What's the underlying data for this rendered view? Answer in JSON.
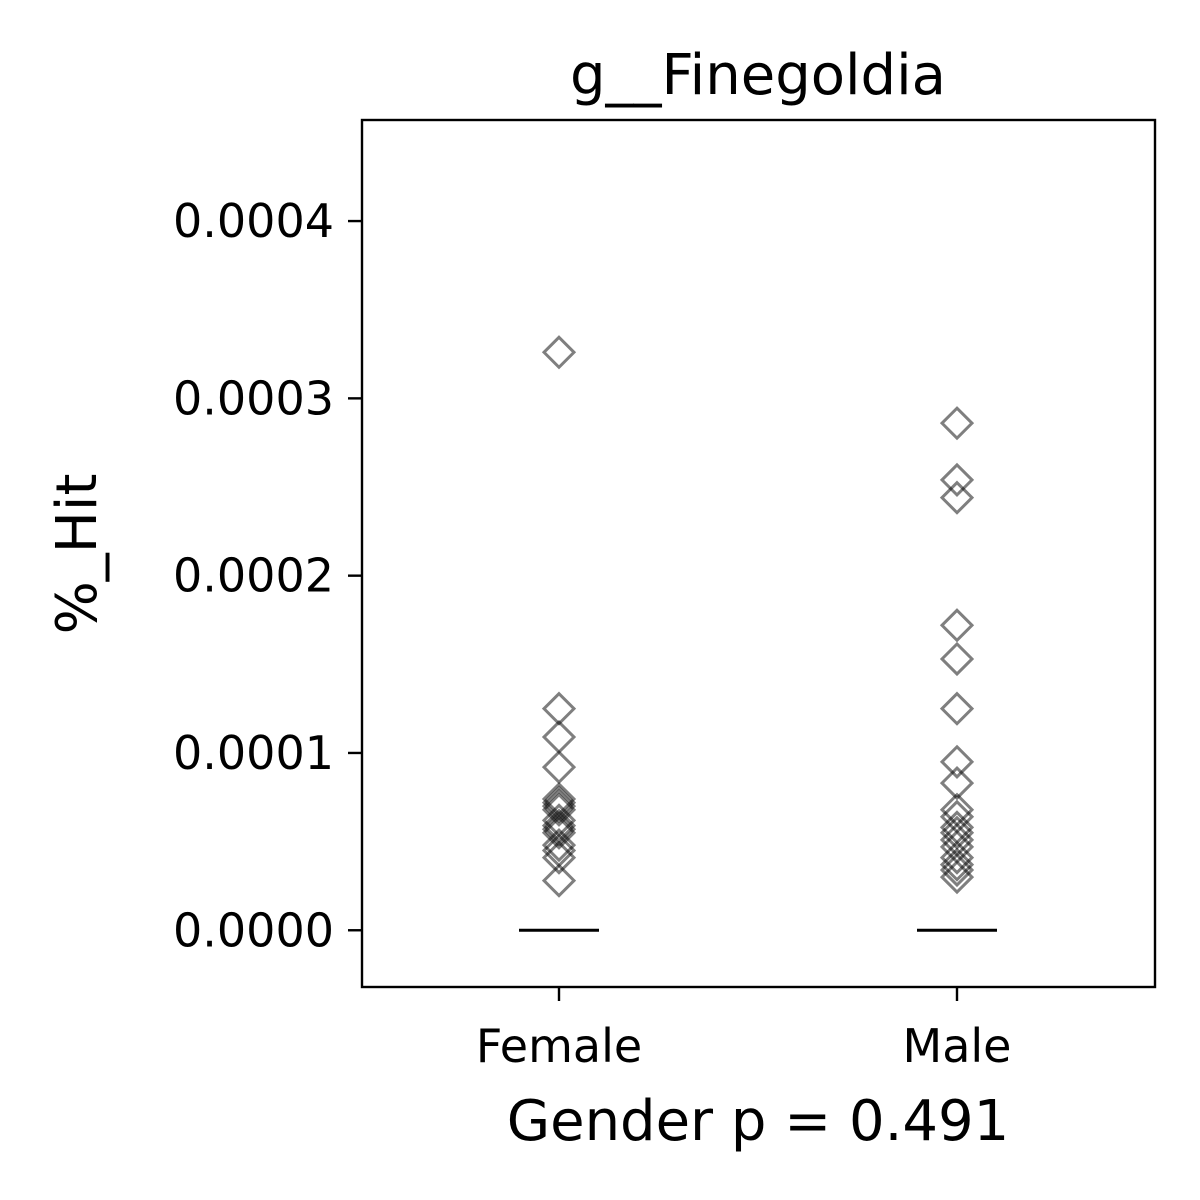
{
  "chart_data": {
    "type": "scatter",
    "title": "g__Finegoldia",
    "xlabel": "Gender p = 0.491",
    "ylabel": "%_Hit",
    "categories": [
      "Female",
      "Male"
    ],
    "ylim": [
      -3.2e-05,
      0.000457
    ],
    "yticks": [
      0,
      0.0001,
      0.0002,
      0.0003,
      0.0004
    ],
    "ytick_labels": [
      "0.0000",
      "0.0001",
      "0.0002",
      "0.0003",
      "0.0004"
    ],
    "grid": false,
    "marker": "open-diamond",
    "marker_color": "#000000",
    "series": [
      {
        "category": "Female",
        "values": [
          0.000326,
          0.000125,
          0.000109,
          9.2e-05,
          7.4e-05,
          7.2e-05,
          7e-05,
          6.8e-05,
          6.2e-05,
          5.9e-05,
          5.7e-05,
          5.5e-05,
          4.8e-05,
          4.5e-05,
          4.1e-05,
          2.8e-05
        ],
        "median": 0.0
      },
      {
        "category": "Male",
        "values": [
          0.000286,
          0.000254,
          0.000244,
          0.000172,
          0.000153,
          0.000125,
          9.5e-05,
          8.3e-05,
          6.8e-05,
          6.4e-05,
          5.8e-05,
          5.5e-05,
          5.1e-05,
          4.7e-05,
          4.1e-05,
          3.7e-05,
          3.4e-05,
          3e-05
        ],
        "median": 0.0
      }
    ]
  }
}
